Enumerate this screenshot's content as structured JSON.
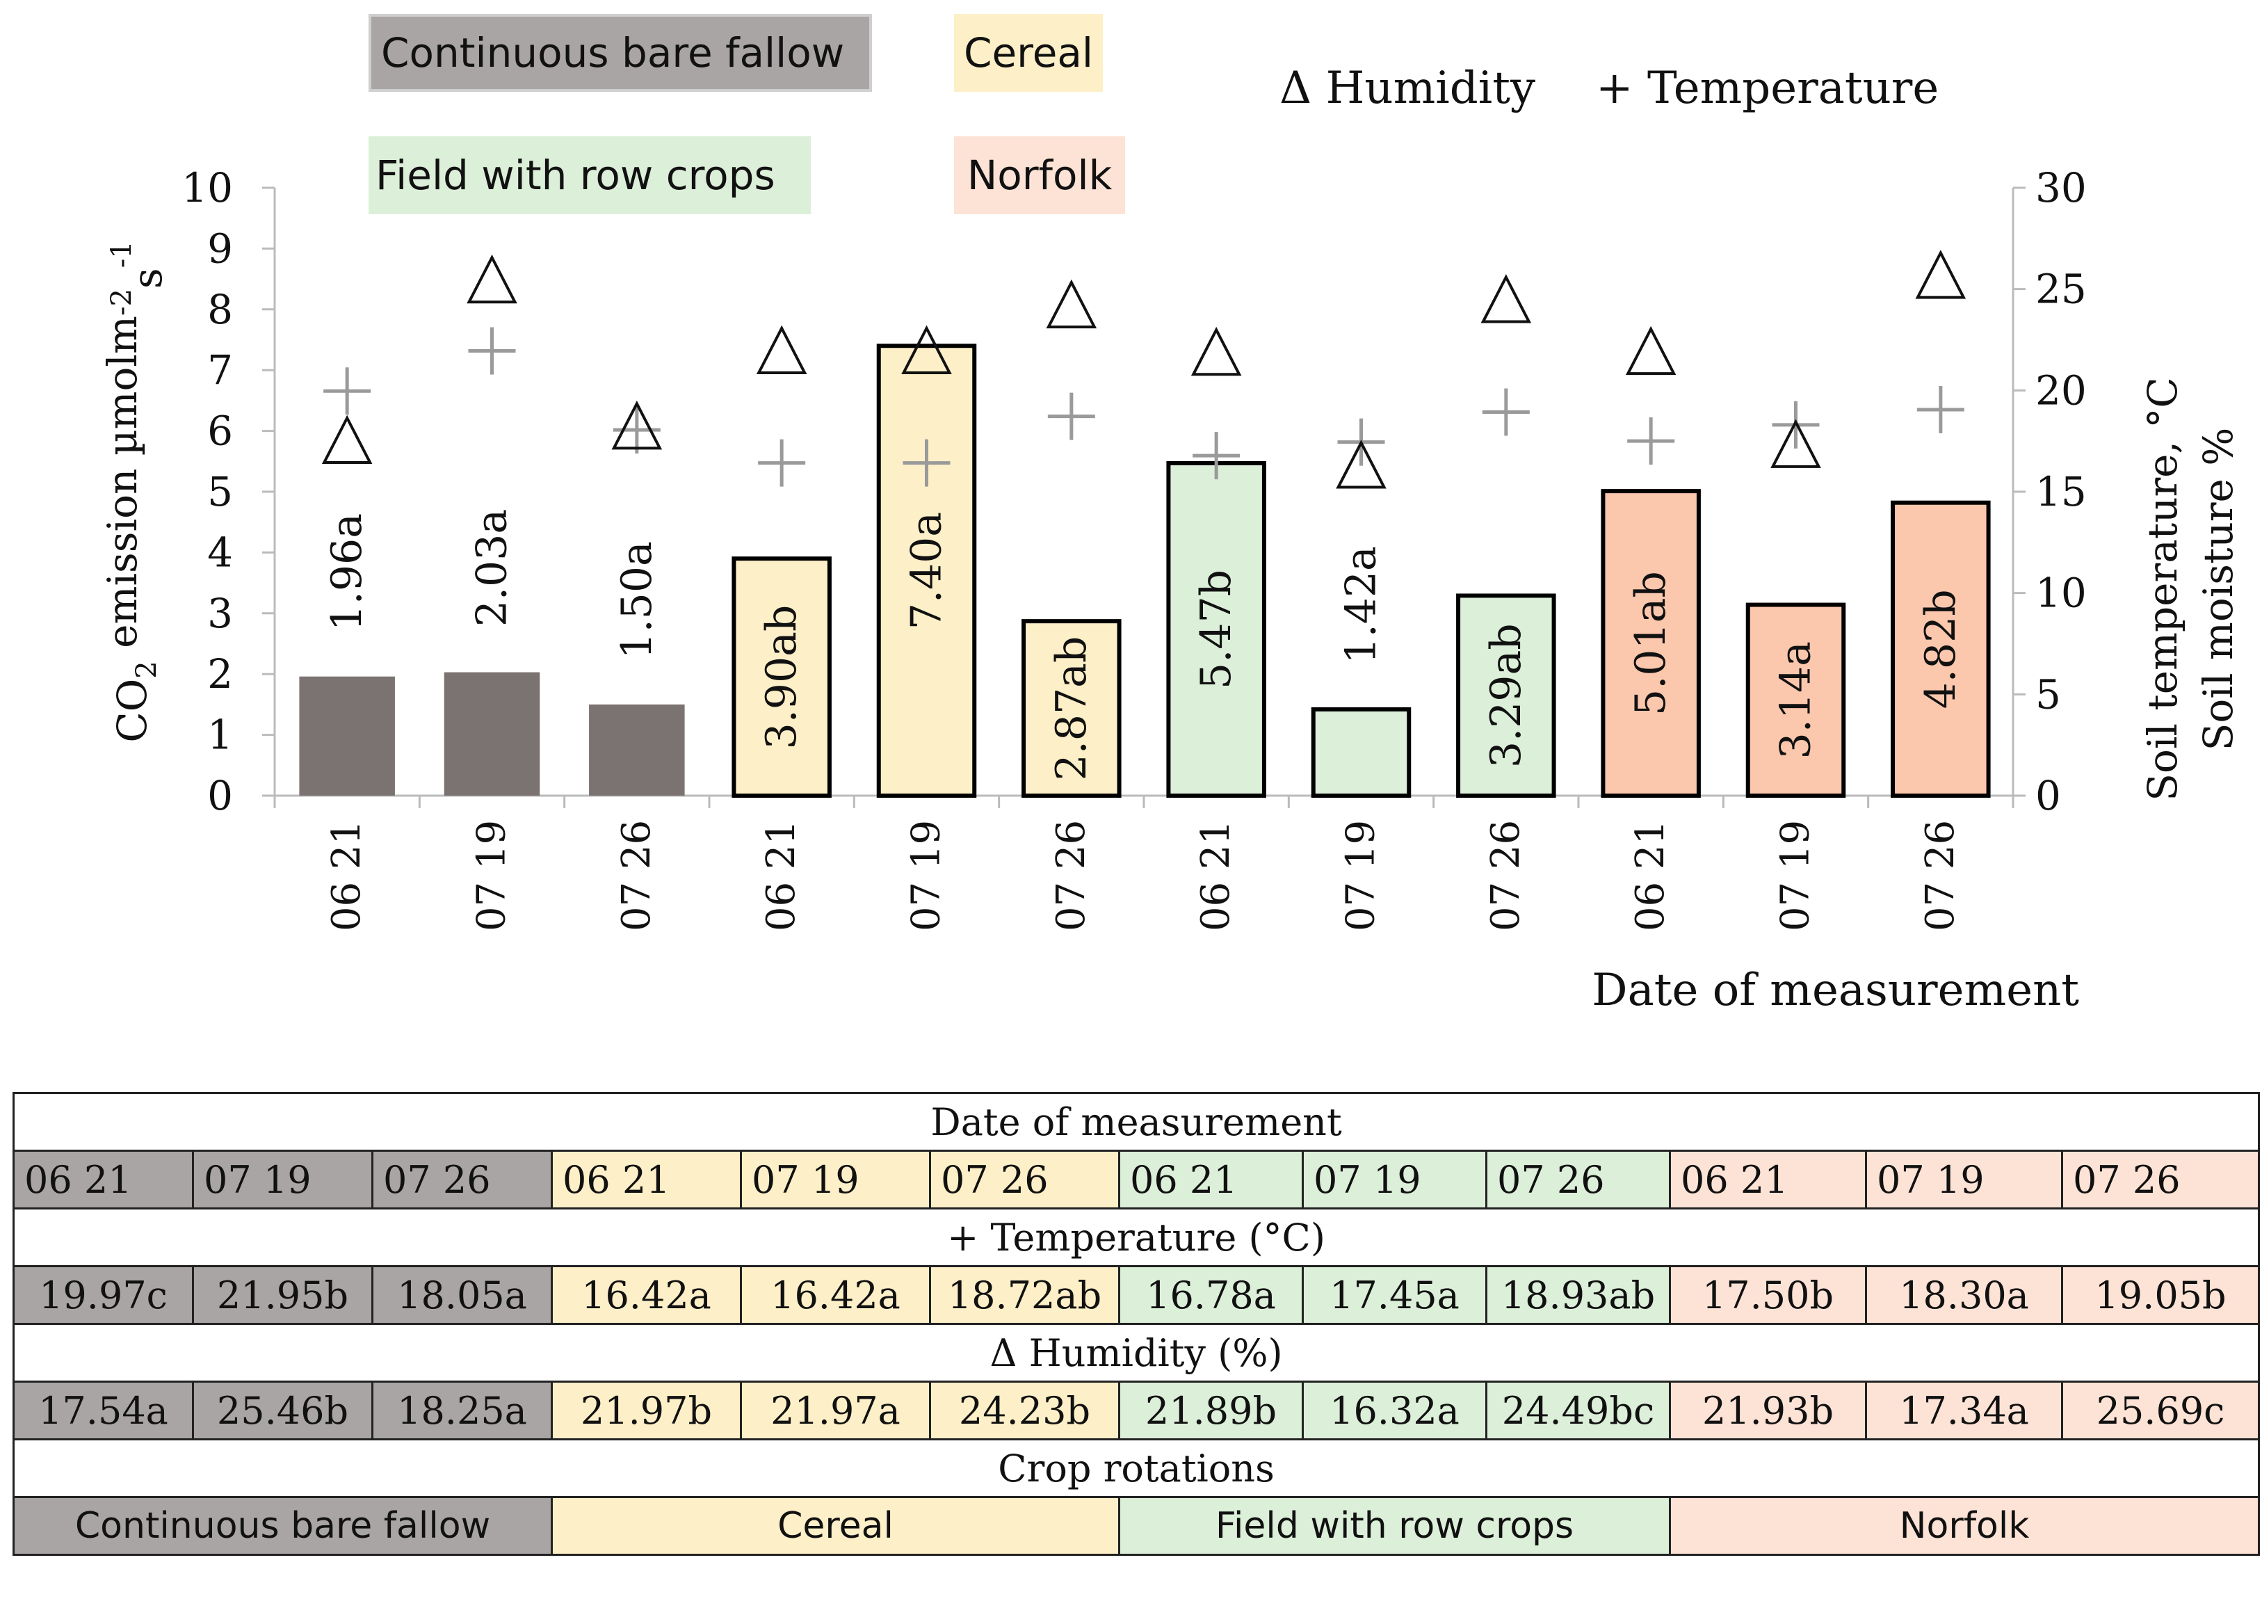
{
  "colors": {
    "fallow": "#7a7371",
    "fallow_light": "#a9a5a4",
    "cereal": "#fdefc7",
    "row_crops": "#dcefd9",
    "norfolk": "#fbc7ad",
    "norfolk_light": "#fde3d6",
    "humidity_marker": "#111111",
    "temperature_marker": "#9a9a9a"
  },
  "legend": {
    "fallow": "Continuous bare fallow",
    "cereal": "Cereal",
    "row_crops": "Field with row crops",
    "norfolk": "Norfolk",
    "humidity": "Δ Humidity",
    "temperature": "+ Temperature"
  },
  "chart_data": {
    "type": "bar",
    "title": "",
    "categories": [
      "06 21",
      "07 19",
      "07 26",
      "06 21",
      "07 19",
      "07 26",
      "06 21",
      "07 19",
      "07 26",
      "06 21",
      "07 19",
      "07 26"
    ],
    "groups": [
      "fallow",
      "fallow",
      "fallow",
      "cereal",
      "cereal",
      "cereal",
      "row_crops",
      "row_crops",
      "row_crops",
      "norfolk",
      "norfolk",
      "norfolk"
    ],
    "values": [
      1.96,
      2.03,
      1.5,
      3.9,
      7.4,
      2.87,
      5.47,
      1.42,
      3.29,
      5.01,
      3.14,
      4.82
    ],
    "bar_labels": [
      "1.96a",
      "2.03a",
      "1.50a",
      "3.90ab",
      "7.40a",
      "2.87ab",
      "5.47b",
      "1.42a",
      "3.29ab",
      "5.01ab",
      "3.14a",
      "4.82b"
    ],
    "label_inside": [
      false,
      false,
      false,
      true,
      true,
      true,
      true,
      false,
      true,
      true,
      true,
      true
    ],
    "humidity": [
      17.54,
      25.46,
      18.25,
      21.97,
      21.97,
      24.23,
      21.89,
      16.32,
      24.49,
      21.93,
      17.34,
      25.69
    ],
    "temperature": [
      19.97,
      21.95,
      18.05,
      16.42,
      16.42,
      18.72,
      16.78,
      17.45,
      18.93,
      17.5,
      18.3,
      19.05
    ],
    "ylabel": "CO2 emission µmolm-2s-1",
    "ylabel_parts": [
      "CO",
      "2",
      " emission µmolm",
      "-2",
      "s",
      "-1"
    ],
    "y2label_1": "Soil temperature, °C",
    "y2label_2": "Soil moisture %",
    "xlabel": "Date of measurement",
    "ylim": [
      0,
      10
    ],
    "y2lim": [
      0,
      30
    ],
    "yticks": [
      0,
      1,
      2,
      3,
      4,
      5,
      6,
      7,
      8,
      9,
      10
    ],
    "y2ticks": [
      0,
      5,
      10,
      15,
      20,
      25,
      30
    ],
    "grid": false,
    "legend_position": "top"
  },
  "table": {
    "date_header": "Date of measurement",
    "dates": [
      "06 21",
      "07 19",
      "07 26",
      "06 21",
      "07 19",
      "07 26",
      "06 21",
      "07 19",
      "07 26",
      "06 21",
      "07 19",
      "07 26"
    ],
    "temperature_header": "+ Temperature (°C)",
    "temperature": [
      "19.97c",
      "21.95b",
      "18.05a",
      "16.42a",
      "16.42a",
      "18.72ab",
      "16.78a",
      "17.45a",
      "18.93ab",
      "17.50b",
      "18.30a",
      "19.05b"
    ],
    "humidity_header": "Δ Humidity (%)",
    "humidity": [
      "17.54a",
      "25.46b",
      "18.25a",
      "21.97b",
      "21.97a",
      "24.23b",
      "21.89b",
      "16.32a",
      "24.49bc",
      "21.93b",
      "17.34a",
      "25.69c"
    ],
    "rotations_header": "Crop rotations",
    "rotations": [
      "Continuous bare fallow",
      "Cereal",
      "Field with row crops",
      "Norfolk"
    ]
  }
}
